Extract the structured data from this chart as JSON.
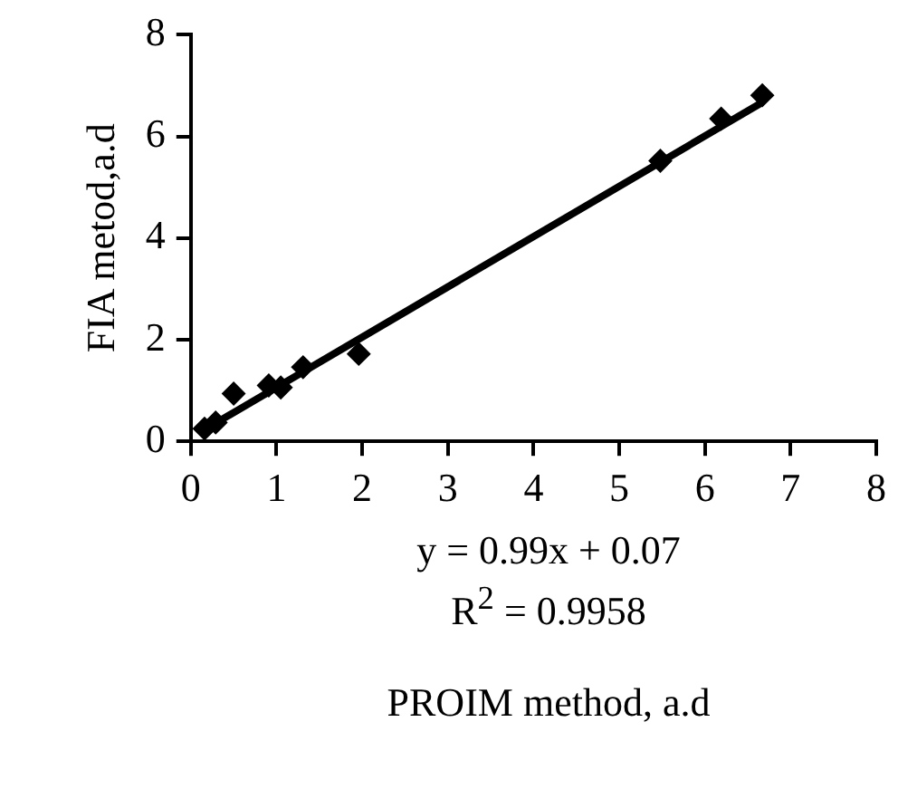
{
  "chart_data": {
    "type": "scatter",
    "ylabel": "FIA metod,a.d",
    "xlabel": "PROIM method, a.d",
    "annotations": [
      "y = 0.99x + 0.07",
      "R$^{2}$ = 0.9958"
    ],
    "series": [
      {
        "color": "#000000",
        "marker": "diamond",
        "x": [
          0.16,
          0.29,
          0.5,
          0.91,
          1.05,
          1.31,
          1.96,
          5.48,
          6.19,
          6.67
        ],
        "values": [
          0.25,
          0.37,
          0.94,
          1.1,
          1.06,
          1.46,
          1.72,
          5.52,
          6.35,
          6.81
        ]
      },
      {
        "type": "line",
        "color": "#000000",
        "marker": "none",
        "line_style": "solid",
        "x": [
          0.16,
          6.67
        ],
        "values": [
          0.23,
          6.67
        ]
      }
    ],
    "xlim": [
      0,
      8
    ],
    "ylim": [
      0,
      8
    ],
    "xticks": [
      0,
      1,
      2,
      3,
      4,
      5,
      6,
      7,
      8
    ],
    "yticks": [
      0,
      2,
      4,
      6,
      8
    ],
    "grid": false,
    "legend": false
  }
}
